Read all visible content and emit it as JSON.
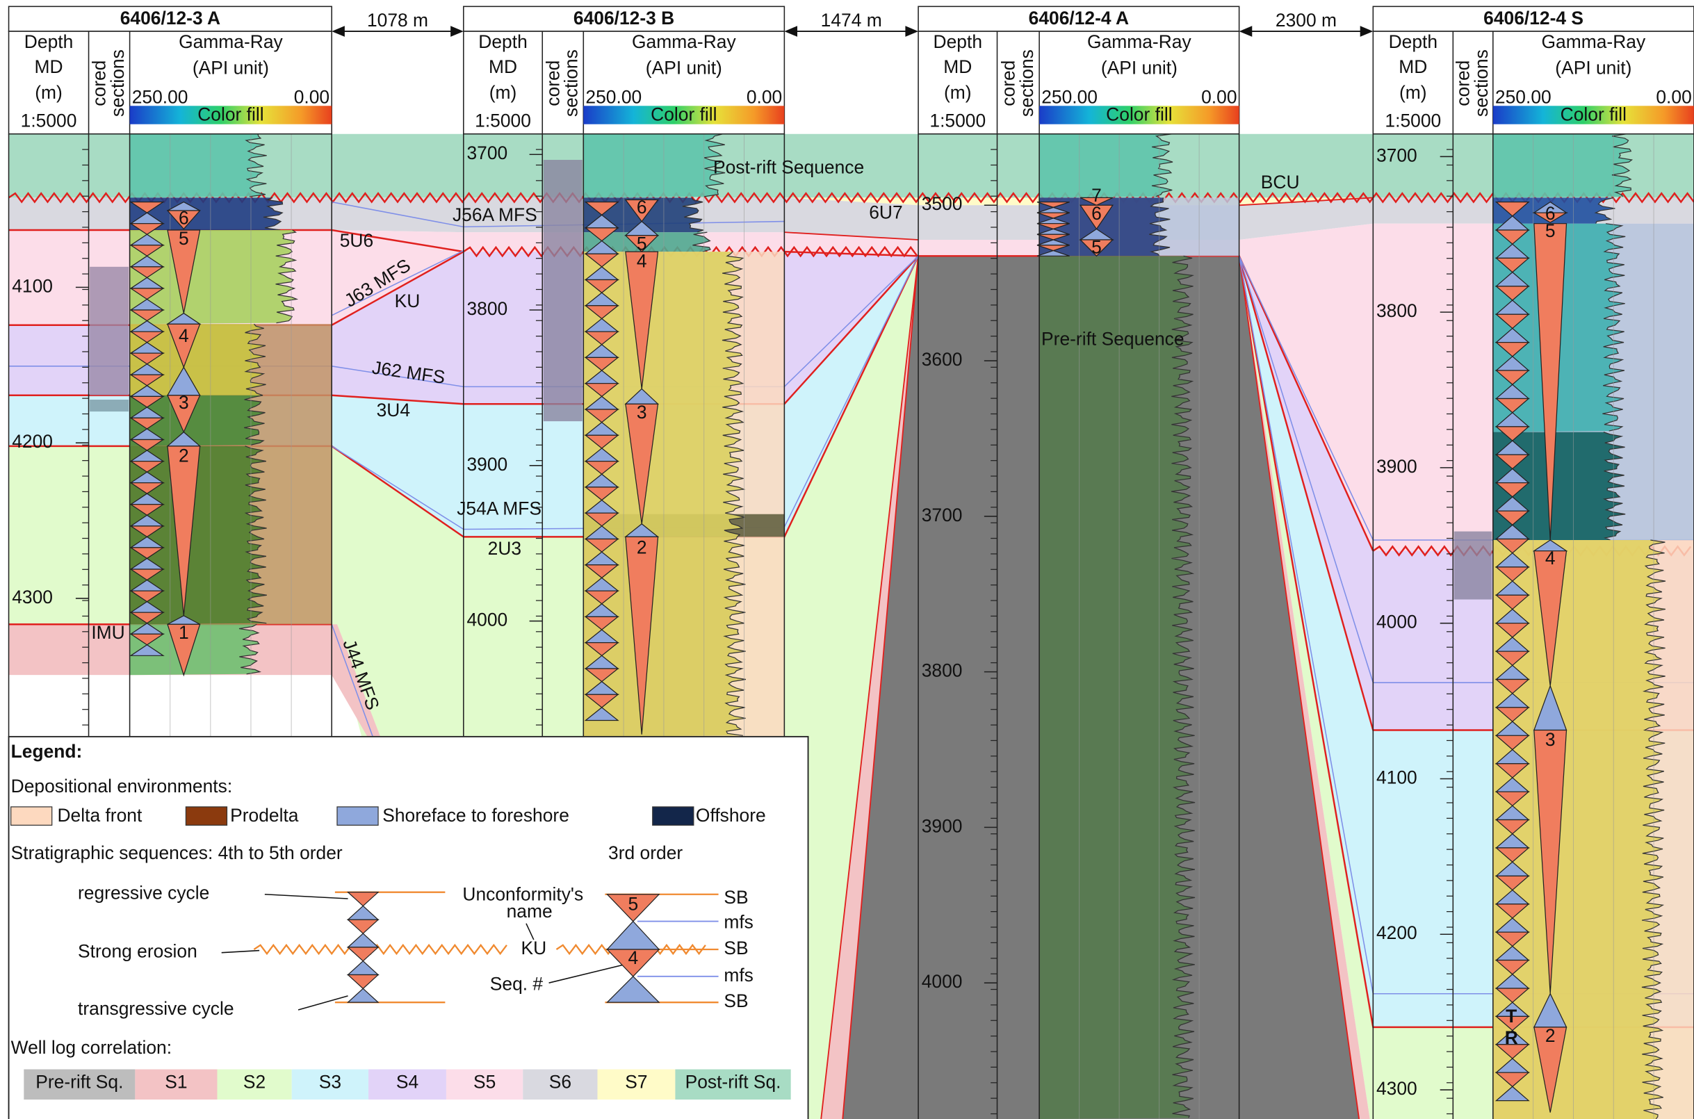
{
  "wells": [
    {
      "name": "6406/12-3 A",
      "depth_ticks": [
        4100,
        4200,
        4300
      ],
      "sequences": [
        6,
        5,
        4,
        3,
        2,
        1
      ]
    },
    {
      "name": "6406/12-3 B",
      "depth_ticks": [
        3700,
        3800,
        3900,
        4000
      ],
      "sequences": [
        6,
        5,
        4,
        3,
        2
      ]
    },
    {
      "name": "6406/12-4 A",
      "depth_ticks": [
        3500,
        3600,
        3700,
        3800,
        3900,
        4000
      ],
      "sequences": [
        7,
        6,
        5
      ]
    },
    {
      "name": "6406/12-4 S",
      "depth_ticks": [
        3700,
        3800,
        3900,
        4000,
        4100,
        4200,
        4300
      ],
      "sequences": [
        6,
        5,
        4,
        3,
        2
      ]
    }
  ],
  "column_headers": {
    "depth": [
      "Depth",
      "MD",
      "(m)"
    ],
    "scale": "1:5000",
    "cored": [
      "cored",
      "sections"
    ],
    "gamma_ray": [
      "Gamma-Ray",
      "(API unit)"
    ],
    "gr_left": "250.00",
    "gr_right": "0.00",
    "color_fill": "Color fill"
  },
  "distances": [
    "1078 m",
    "1474 m",
    "2300 m"
  ],
  "sequence_names": [
    "Post-rift Sequence",
    "Pre-rift Sequence"
  ],
  "surfaces": [
    "5U6",
    "KU",
    "3U4",
    "2U3",
    "IMU",
    "6U7",
    "BCU",
    "J56A MFS",
    "J63 MFS",
    "J62 MFS",
    "J54A MFS",
    "J44 MFS"
  ],
  "trend_marks": [
    "T",
    "R"
  ],
  "legend": {
    "title": "Legend:",
    "environments_title": "Depositional environments:",
    "environments": [
      "Delta front",
      "Prodelta",
      "Shoreface to foreshore",
      "Offshore"
    ],
    "sequences_title": "Stratigraphic sequences:  4th to 5th order",
    "third_order": "3rd order",
    "regressive": "regressive cycle",
    "erosion": "Strong erosion",
    "transgressive": "transgressive cycle",
    "unconformity": [
      "Unconformity's",
      "name"
    ],
    "unconformity_example": "KU",
    "seq_no": "Seq. #",
    "seq_examples": [
      5,
      4
    ],
    "surface_keys": [
      "SB",
      "mfs",
      "SB",
      "mfs",
      "SB"
    ],
    "correlation_title": "Well log correlation:",
    "units": [
      "Pre-rift Sq.",
      "S1",
      "S2",
      "S3",
      "S4",
      "S5",
      "S6",
      "S7",
      "Post-rift Sq."
    ]
  }
}
